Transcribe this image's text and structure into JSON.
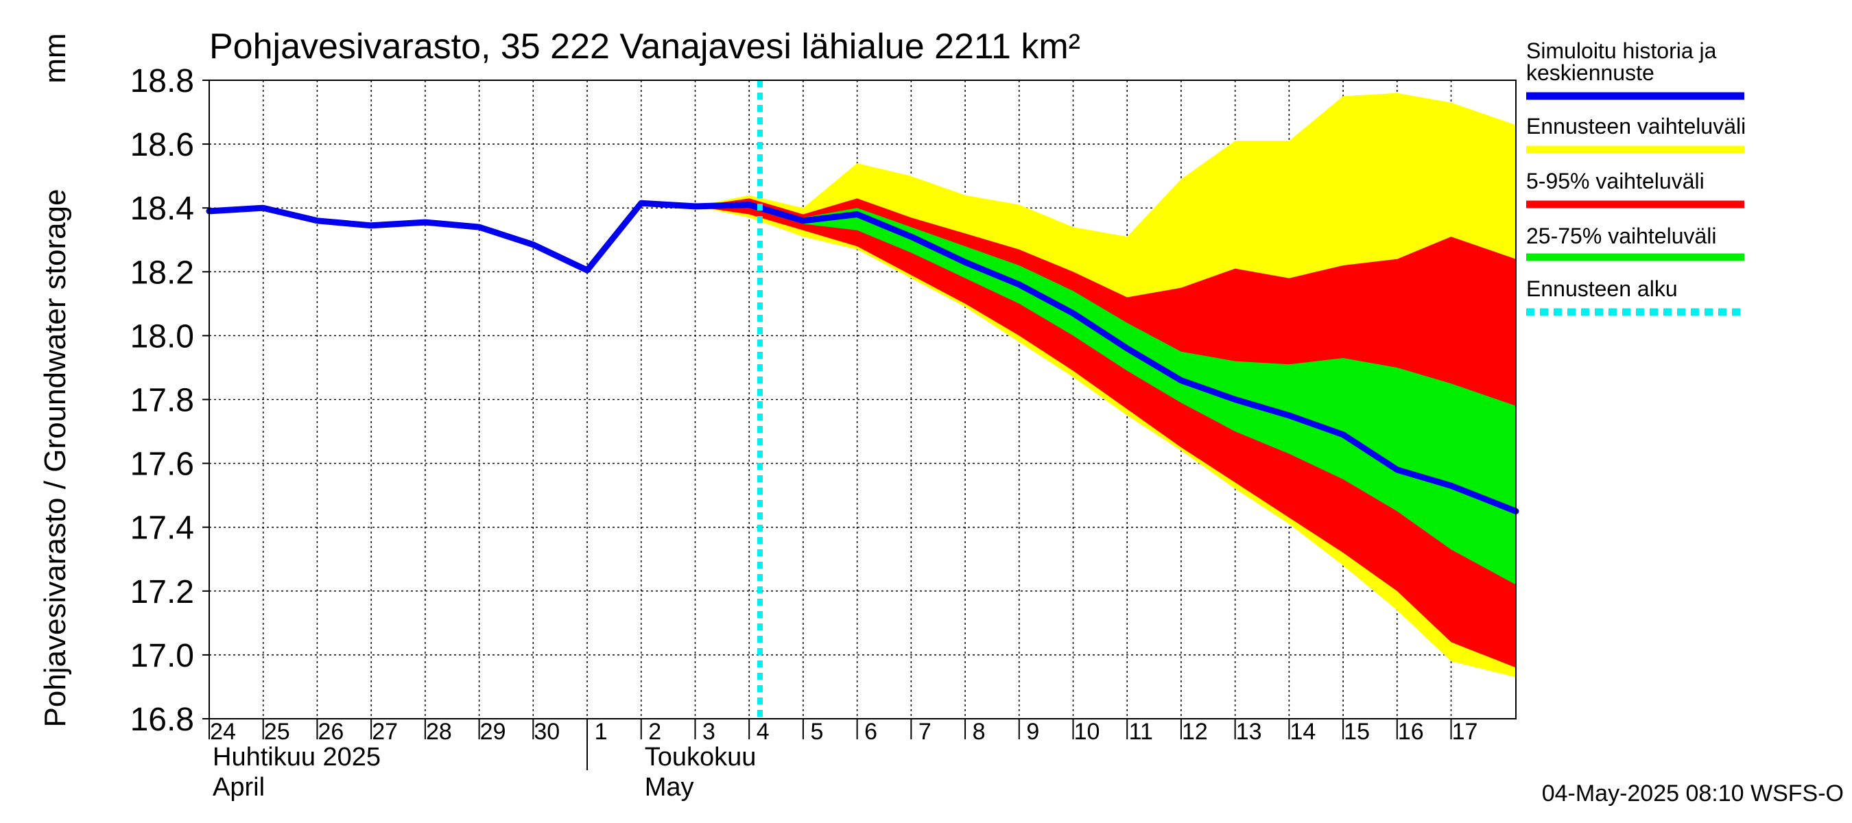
{
  "chart_data": {
    "type": "area",
    "title": "Pohjavesivarasto, 35 222 Vanajavesi lähialue 2211 km²",
    "ylabel": "Pohjavesivarasto / Groundwater storage",
    "yunit": "mm",
    "ylim": [
      16.8,
      18.8
    ],
    "yticks": [
      "16.8",
      "17.0",
      "17.2",
      "17.4",
      "17.6",
      "17.8",
      "18.0",
      "18.2",
      "18.4",
      "18.6",
      "18.8"
    ],
    "xlim": [
      0,
      24.2
    ],
    "x_tick_labels": [
      {
        "x": 0,
        "label": "24"
      },
      {
        "x": 1,
        "label": "25"
      },
      {
        "x": 2,
        "label": "26"
      },
      {
        "x": 3,
        "label": "27"
      },
      {
        "x": 4,
        "label": "28"
      },
      {
        "x": 5,
        "label": "29"
      },
      {
        "x": 6,
        "label": "30"
      },
      {
        "x": 7,
        "label": "1"
      },
      {
        "x": 8,
        "label": "2"
      },
      {
        "x": 9,
        "label": "3"
      },
      {
        "x": 10,
        "label": "4"
      },
      {
        "x": 11,
        "label": "5"
      },
      {
        "x": 12,
        "label": "6"
      },
      {
        "x": 13,
        "label": "7"
      },
      {
        "x": 14,
        "label": "8"
      },
      {
        "x": 15,
        "label": "9"
      },
      {
        "x": 16,
        "label": "10"
      },
      {
        "x": 17,
        "label": "11"
      },
      {
        "x": 18,
        "label": "12"
      },
      {
        "x": 19,
        "label": "13"
      },
      {
        "x": 20,
        "label": "14"
      },
      {
        "x": 21,
        "label": "15"
      },
      {
        "x": 22,
        "label": "16"
      },
      {
        "x": 23,
        "label": "17"
      }
    ],
    "month_labels": [
      {
        "x": 0,
        "line1": "Huhtikuu  2025",
        "line2": "April"
      },
      {
        "x": 8,
        "line1": "Toukokuu",
        "line2": "May"
      }
    ],
    "month_boundary_x": 7,
    "forecast_start_x": 10.2,
    "x": [
      0,
      1,
      2,
      3,
      4,
      5,
      6,
      7,
      8,
      9,
      10,
      11,
      12,
      13,
      14,
      15,
      16,
      17,
      18,
      19,
      20,
      21,
      22,
      23,
      24.2
    ],
    "history": {
      "x": [
        0,
        1,
        2,
        3,
        4,
        5,
        6,
        7,
        8,
        9,
        10
      ],
      "values": [
        18.39,
        18.4,
        18.36,
        18.345,
        18.355,
        18.34,
        18.285,
        18.205,
        18.415,
        18.405,
        18.41
      ]
    },
    "series": [
      {
        "name": "Simuloitu historia ja keskiennuste",
        "color": "#0000ee",
        "x": [
          10,
          11,
          12,
          13,
          14,
          15,
          16,
          17,
          18,
          19,
          20,
          21,
          22,
          23,
          24.2
        ],
        "values": [
          18.41,
          18.36,
          18.38,
          18.31,
          18.23,
          18.16,
          18.07,
          17.96,
          17.86,
          17.8,
          17.75,
          17.69,
          17.58,
          17.53,
          17.45
        ]
      },
      {
        "name": "Ennusteen vaihteluväli",
        "color": "#ffff00",
        "x": [
          9,
          10,
          11,
          12,
          13,
          14,
          15,
          16,
          17,
          18,
          19,
          20,
          21,
          22,
          23,
          24.2
        ],
        "upper": [
          18.405,
          18.44,
          18.4,
          18.54,
          18.5,
          18.44,
          18.41,
          18.34,
          18.31,
          18.49,
          18.61,
          18.61,
          18.75,
          18.76,
          18.73,
          18.66
        ],
        "lower": [
          18.405,
          18.37,
          18.31,
          18.27,
          18.18,
          18.09,
          17.98,
          17.87,
          17.75,
          17.64,
          17.52,
          17.41,
          17.28,
          17.14,
          16.98,
          16.93
        ]
      },
      {
        "name": "5-95% vaihteluväli",
        "color": "#ff0000",
        "x": [
          9,
          10,
          11,
          12,
          13,
          14,
          15,
          16,
          17,
          18,
          19,
          20,
          21,
          22,
          23,
          24.2
        ],
        "upper": [
          18.405,
          18.43,
          18.38,
          18.43,
          18.37,
          18.32,
          18.27,
          18.2,
          18.12,
          18.15,
          18.21,
          18.18,
          18.22,
          18.24,
          18.31,
          18.24
        ],
        "lower": [
          18.405,
          18.38,
          18.33,
          18.28,
          18.19,
          18.1,
          18.0,
          17.89,
          17.77,
          17.65,
          17.54,
          17.43,
          17.32,
          17.2,
          17.04,
          16.96
        ]
      },
      {
        "name": "25-75% vaihteluväli",
        "color": "#00ee00",
        "x": [
          10,
          11,
          12,
          13,
          14,
          15,
          16,
          17,
          18,
          19,
          20,
          21,
          22,
          23,
          24.2
        ],
        "upper": [
          18.42,
          18.37,
          18.4,
          18.34,
          18.28,
          18.22,
          18.14,
          18.04,
          17.95,
          17.92,
          17.91,
          17.93,
          17.9,
          17.85,
          17.78
        ],
        "lower": [
          18.4,
          18.35,
          18.33,
          18.26,
          18.18,
          18.1,
          18.0,
          17.89,
          17.79,
          17.7,
          17.63,
          17.55,
          17.45,
          17.33,
          17.22
        ]
      }
    ],
    "legend": {
      "placement": "right",
      "entries": [
        {
          "line1": "Simuloitu historia ja",
          "line2": "keskiennuste",
          "color": "#0000ee",
          "style": "solid"
        },
        {
          "line1": "Ennusteen vaihteluväli",
          "line2": "",
          "color": "#ffff00",
          "style": "solid"
        },
        {
          "line1": "5-95% vaihteluväli",
          "line2": "",
          "color": "#ff0000",
          "style": "solid"
        },
        {
          "line1": "25-75% vaihteluväli",
          "line2": "",
          "color": "#00ee00",
          "style": "solid"
        },
        {
          "line1": "Ennusteen alku",
          "line2": "",
          "color": "#00eeee",
          "style": "dotted"
        }
      ]
    },
    "footer": "04-May-2025 08:10 WSFS-O",
    "grid": true
  }
}
